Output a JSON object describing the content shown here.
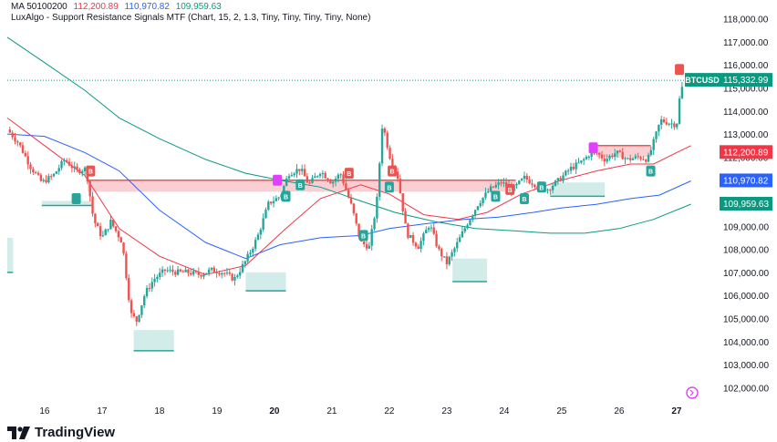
{
  "legend": {
    "ma_label": "MA 50100200",
    "ma_values": [
      "112,200.89",
      "110,970.82",
      "109,959.63"
    ],
    "indicator": "LuxAlgo - Support Resistance Signals MTF (Chart, 15, 2, 1.3, Tiny, Tiny, Tiny, Tiny, None)"
  },
  "brand": {
    "name": "TradingView",
    "icon": "tradingview-logo-icon"
  },
  "colors": {
    "up": "#26a69a",
    "down": "#ef5350",
    "ma50": "#f23645",
    "ma100": "#2962ff",
    "ma200": "#089981",
    "resistance_zone": "#f8bbc0",
    "support_zone": "#b2dfdb",
    "price_label": "#089981"
  },
  "chart_data": {
    "type": "candlestick",
    "symbol": "BTCUSD",
    "last_price": 115332.99,
    "last_price_label": "115,332.99",
    "ylim": [
      101500,
      118500
    ],
    "y_ticks": [
      "118,000.00",
      "117,000.00",
      "116,000.00",
      "115,000.00",
      "114,000.00",
      "113,000.00",
      "112,000.00",
      "111,000.00",
      "110,000.00",
      "109,000.00",
      "108,000.00",
      "107,000.00",
      "106,000.00",
      "105,000.00",
      "104,000.00",
      "103,000.00",
      "102,000.00"
    ],
    "y_tick_values": [
      118000,
      117000,
      116000,
      115000,
      114000,
      113000,
      112000,
      111000,
      110000,
      109000,
      108000,
      107000,
      106000,
      105000,
      104000,
      103000,
      102000
    ],
    "x_ticks": [
      "16",
      "17",
      "18",
      "19",
      "20",
      "21",
      "22",
      "23",
      "24",
      "25",
      "26",
      "27"
    ],
    "x_tick_positions_day": [
      16,
      17,
      18,
      19,
      20,
      21,
      22,
      23,
      24,
      25,
      26,
      27
    ],
    "x_range_day": [
      15.35,
      27.7
    ],
    "ma_labels": [
      {
        "name": "MA 50",
        "value": 112200.89,
        "label": "112,200.89"
      },
      {
        "name": "MA 100",
        "value": 110970.82,
        "label": "110,970.82"
      },
      {
        "name": "MA 200",
        "value": 109959.63,
        "label": "109,959.63"
      }
    ],
    "price_path": [
      [
        15.35,
        113200
      ],
      [
        15.55,
        112600
      ],
      [
        15.75,
        111600
      ],
      [
        15.95,
        110900
      ],
      [
        16.15,
        111200
      ],
      [
        16.35,
        111900
      ],
      [
        16.55,
        111400
      ],
      [
        16.72,
        111500
      ],
      [
        16.85,
        109300
      ],
      [
        17.0,
        108500
      ],
      [
        17.15,
        109200
      ],
      [
        17.35,
        108300
      ],
      [
        17.5,
        105200
      ],
      [
        17.6,
        104900
      ],
      [
        17.75,
        106100
      ],
      [
        17.9,
        106700
      ],
      [
        18.1,
        107100
      ],
      [
        18.3,
        107000
      ],
      [
        18.5,
        107000
      ],
      [
        18.7,
        106900
      ],
      [
        18.9,
        107100
      ],
      [
        19.1,
        107000
      ],
      [
        19.3,
        106700
      ],
      [
        19.5,
        107500
      ],
      [
        19.7,
        108500
      ],
      [
        19.9,
        110000
      ],
      [
        20.1,
        110300
      ],
      [
        20.25,
        111300
      ],
      [
        20.45,
        111500
      ],
      [
        20.6,
        110800
      ],
      [
        20.8,
        111400
      ],
      [
        21.0,
        110900
      ],
      [
        21.15,
        111300
      ],
      [
        21.35,
        109800
      ],
      [
        21.5,
        108300
      ],
      [
        21.65,
        108100
      ],
      [
        21.78,
        110000
      ],
      [
        21.88,
        113500
      ],
      [
        22.0,
        112100
      ],
      [
        22.15,
        111100
      ],
      [
        22.3,
        108700
      ],
      [
        22.5,
        108100
      ],
      [
        22.7,
        109100
      ],
      [
        22.85,
        108000
      ],
      [
        23.0,
        107400
      ],
      [
        23.15,
        108100
      ],
      [
        23.35,
        109100
      ],
      [
        23.55,
        110000
      ],
      [
        23.75,
        110600
      ],
      [
        23.95,
        110900
      ],
      [
        24.15,
        110600
      ],
      [
        24.35,
        111100
      ],
      [
        24.55,
        110800
      ],
      [
        24.75,
        110600
      ],
      [
        24.95,
        111000
      ],
      [
        25.15,
        111500
      ],
      [
        25.35,
        111800
      ],
      [
        25.55,
        112300
      ],
      [
        25.75,
        111900
      ],
      [
        25.95,
        112200
      ],
      [
        26.15,
        111900
      ],
      [
        26.35,
        112000
      ],
      [
        26.5,
        111900
      ],
      [
        26.62,
        112800
      ],
      [
        26.72,
        113600
      ],
      [
        26.85,
        113500
      ],
      [
        27.0,
        113400
      ],
      [
        27.05,
        114500
      ],
      [
        27.12,
        115300
      ]
    ],
    "ma50": [
      [
        15.35,
        113700
      ],
      [
        16.0,
        112500
      ],
      [
        16.7,
        111200
      ],
      [
        17.3,
        108900
      ],
      [
        18.0,
        107700
      ],
      [
        18.8,
        106900
      ],
      [
        19.5,
        107300
      ],
      [
        20.2,
        108900
      ],
      [
        20.8,
        110200
      ],
      [
        21.5,
        110800
      ],
      [
        22.0,
        110400
      ],
      [
        22.6,
        109500
      ],
      [
        23.2,
        109300
      ],
      [
        23.7,
        109600
      ],
      [
        24.3,
        110400
      ],
      [
        25.0,
        111000
      ],
      [
        25.6,
        111400
      ],
      [
        26.2,
        111700
      ],
      [
        26.6,
        111700
      ],
      [
        27.0,
        112200
      ],
      [
        27.25,
        112500
      ]
    ],
    "ma100": [
      [
        15.35,
        113000
      ],
      [
        16.0,
        112900
      ],
      [
        16.7,
        112200
      ],
      [
        17.3,
        111400
      ],
      [
        18.0,
        109700
      ],
      [
        18.8,
        108300
      ],
      [
        19.5,
        107600
      ],
      [
        20.1,
        108200
      ],
      [
        20.8,
        108500
      ],
      [
        21.5,
        108600
      ],
      [
        22.0,
        108900
      ],
      [
        22.6,
        109100
      ],
      [
        23.3,
        109300
      ],
      [
        23.9,
        109400
      ],
      [
        24.5,
        109600
      ],
      [
        25.0,
        109800
      ],
      [
        25.6,
        109950
      ],
      [
        26.2,
        110200
      ],
      [
        26.7,
        110350
      ],
      [
        27.25,
        110970
      ]
    ],
    "ma200": [
      [
        15.35,
        117200
      ],
      [
        16.0,
        116100
      ],
      [
        16.7,
        114900
      ],
      [
        17.3,
        113700
      ],
      [
        18.0,
        112800
      ],
      [
        18.8,
        111900
      ],
      [
        19.5,
        111300
      ],
      [
        20.1,
        111000
      ],
      [
        20.8,
        110700
      ],
      [
        21.5,
        110100
      ],
      [
        22.1,
        109600
      ],
      [
        22.8,
        109200
      ],
      [
        23.5,
        108900
      ],
      [
        24.2,
        108800
      ],
      [
        24.8,
        108700
      ],
      [
        25.4,
        108700
      ],
      [
        26.0,
        108900
      ],
      [
        26.6,
        109300
      ],
      [
        27.25,
        109960
      ]
    ],
    "zones": [
      {
        "kind": "resistance",
        "from": 16.75,
        "to": 24.2,
        "top": 111000,
        "bottom": 110500
      },
      {
        "kind": "resistance",
        "from": 25.6,
        "to": 26.55,
        "top": 112500,
        "bottom": 112000
      },
      {
        "kind": "support",
        "from": 15.95,
        "to": 16.85,
        "top": 110100,
        "bottom": 109900
      },
      {
        "kind": "support",
        "from": 17.55,
        "to": 18.25,
        "top": 104500,
        "bottom": 103600
      },
      {
        "kind": "support",
        "from": 19.5,
        "to": 20.2,
        "top": 107000,
        "bottom": 106200
      },
      {
        "kind": "support",
        "from": 23.1,
        "to": 23.7,
        "top": 107600,
        "bottom": 106600
      },
      {
        "kind": "support",
        "from": 15.35,
        "to": 15.45,
        "top": 108500,
        "bottom": 107000
      },
      {
        "kind": "support",
        "from": 24.8,
        "to": 25.75,
        "top": 110900,
        "bottom": 110300
      }
    ],
    "signals": [
      {
        "day": 16.8,
        "value": 111400,
        "type": "sell",
        "text": "B"
      },
      {
        "day": 16.55,
        "value": 110200,
        "type": "buy",
        "text": ""
      },
      {
        "day": 20.2,
        "value": 110300,
        "type": "buy",
        "text": "B"
      },
      {
        "day": 20.45,
        "value": 110800,
        "type": "buy",
        "text": "B"
      },
      {
        "day": 21.3,
        "value": 111300,
        "type": "sell",
        "text": "B"
      },
      {
        "day": 21.55,
        "value": 108600,
        "type": "buy",
        "text": "B"
      },
      {
        "day": 22.05,
        "value": 111400,
        "type": "sell",
        "text": "B"
      },
      {
        "day": 22.0,
        "value": 110700,
        "type": "buy",
        "text": "B"
      },
      {
        "day": 23.85,
        "value": 110300,
        "type": "buy",
        "text": "B"
      },
      {
        "day": 24.1,
        "value": 110600,
        "type": "sell",
        "text": "B"
      },
      {
        "day": 24.35,
        "value": 110200,
        "type": "buy",
        "text": "B"
      },
      {
        "day": 24.65,
        "value": 110700,
        "type": "buy",
        "text": "B"
      },
      {
        "day": 26.55,
        "value": 111400,
        "type": "buy",
        "text": "B"
      },
      {
        "day": 25.55,
        "value": 112400,
        "type": "magenta",
        "text": ""
      },
      {
        "day": 20.05,
        "value": 111000,
        "type": "magenta",
        "text": ""
      },
      {
        "day": 27.05,
        "value": 115800,
        "type": "sell",
        "text": ""
      }
    ]
  }
}
